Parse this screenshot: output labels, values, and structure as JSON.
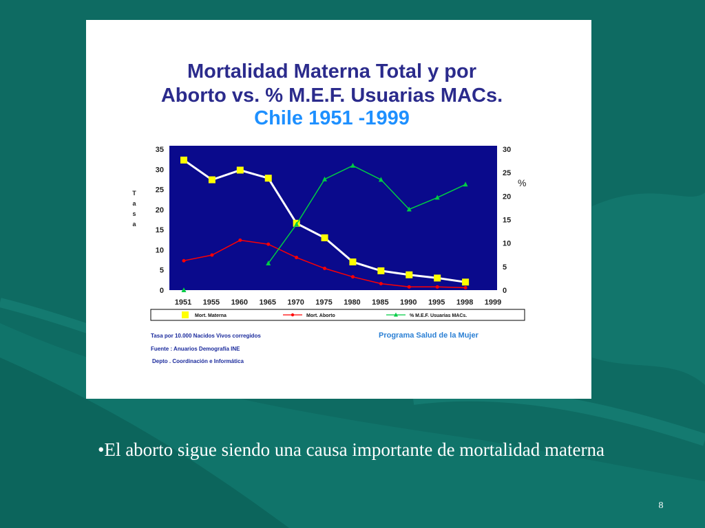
{
  "slide": {
    "bullet_text": "•El aborto sigue siendo una causa importante de mortalidad materna",
    "page_number": "8",
    "background_color": "#0e6b62"
  },
  "chart_data": {
    "type": "line",
    "title_line1": "Mortalidad Materna Total y por",
    "title_line2": "Aborto vs. % M.E.F. Usuarias MACs.",
    "subtitle": "Chile 1951 -1999",
    "ylabel_left": "T a s a",
    "ylabel_right": "%",
    "categories": [
      "1951",
      "1955",
      "1960",
      "1965",
      "1970",
      "1975",
      "1980",
      "1985",
      "1990",
      "1995",
      "1998",
      "1999"
    ],
    "yticks_left": [
      "35",
      "30",
      "25",
      "20",
      "15",
      "10",
      "5",
      "0"
    ],
    "yticks_right": [
      "30",
      "25",
      "20",
      "15",
      "10",
      "5",
      "0"
    ],
    "ylim_left": [
      0,
      35
    ],
    "ylim_right": [
      0,
      30
    ],
    "plot_background": "#0a0a8c",
    "series": [
      {
        "name": "Mort. Materna",
        "axis": "left",
        "color": "#ffffff",
        "marker_color": "#ffff00",
        "values": [
          32.3,
          27.4,
          29.8,
          27.8,
          16.6,
          13.0,
          7.0,
          4.8,
          3.8,
          3.0,
          2.0,
          null
        ]
      },
      {
        "name": "Mort. Aborto",
        "axis": "left",
        "color": "#ff0000",
        "marker_color": "#ff0000",
        "values": [
          7.3,
          8.7,
          12.4,
          11.4,
          8.1,
          5.4,
          3.3,
          1.6,
          0.8,
          0.8,
          0.6,
          null
        ]
      },
      {
        "name": "% M.E.F. Usuarias MACs.",
        "axis": "right",
        "color": "#00cc44",
        "marker_color": "#00cc44",
        "values": [
          0,
          null,
          null,
          5.7,
          14.0,
          23.6,
          26.5,
          23.5,
          17.2,
          19.7,
          22.5,
          null
        ]
      }
    ],
    "notes": [
      "Tasa por 10.000 Nacidos Vivos corregidos",
      "Fuente : Anuarios Demografía INE",
      "Depto . Coordinación e Informática"
    ],
    "program_label": "Programa Salud de la Mujer",
    "legend_position": "bottom",
    "grid": false
  }
}
